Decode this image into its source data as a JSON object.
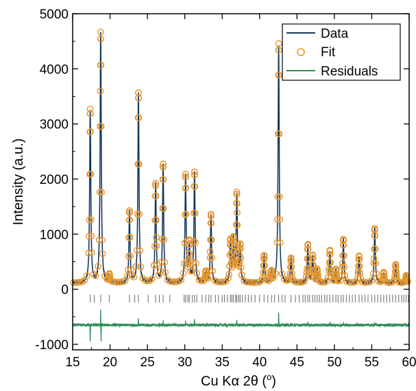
{
  "chart_data": {
    "type": "line",
    "xlabel": "Cu Kα 2θ (°)",
    "xlabel_main": "Cu Kα 2θ (",
    "xlabel_unit": "o",
    "xlabel_close": ")",
    "ylabel": "Intensity (a.u.)",
    "xlim": [
      15,
      60
    ],
    "ylim": [
      -1100,
      5000
    ],
    "x_ticks": [
      15,
      20,
      25,
      30,
      35,
      40,
      45,
      50,
      55,
      60
    ],
    "y_ticks": [
      -1000,
      0,
      1000,
      2000,
      3000,
      4000,
      5000
    ],
    "grid": false,
    "legend_position": "top-right",
    "colors": {
      "data": "#13365f",
      "fit": "#e6962d",
      "residuals": "#2e8b57",
      "bragg_ticks": "#7f7f7f"
    },
    "background_level": 110,
    "peaks": [
      {
        "x": 17.35,
        "y": 3250
      },
      {
        "x": 18.75,
        "y": 4650
      },
      {
        "x": 19.9,
        "y": 250
      },
      {
        "x": 22.6,
        "y": 1400
      },
      {
        "x": 23.8,
        "y": 3550
      },
      {
        "x": 26.1,
        "y": 1900
      },
      {
        "x": 27.1,
        "y": 2250
      },
      {
        "x": 30.1,
        "y": 2050
      },
      {
        "x": 30.6,
        "y": 800
      },
      {
        "x": 31.3,
        "y": 2100
      },
      {
        "x": 32.8,
        "y": 300
      },
      {
        "x": 33.5,
        "y": 1350
      },
      {
        "x": 36.1,
        "y": 850
      },
      {
        "x": 36.5,
        "y": 850
      },
      {
        "x": 36.95,
        "y": 1700
      },
      {
        "x": 37.4,
        "y": 750
      },
      {
        "x": 40.6,
        "y": 600
      },
      {
        "x": 41.6,
        "y": 300
      },
      {
        "x": 42.55,
        "y": 4450
      },
      {
        "x": 44.2,
        "y": 550
      },
      {
        "x": 46.45,
        "y": 800
      },
      {
        "x": 47.1,
        "y": 600
      },
      {
        "x": 47.7,
        "y": 350
      },
      {
        "x": 49.4,
        "y": 700
      },
      {
        "x": 50.2,
        "y": 350
      },
      {
        "x": 51.2,
        "y": 900
      },
      {
        "x": 53.3,
        "y": 600
      },
      {
        "x": 55.4,
        "y": 1100
      },
      {
        "x": 56.6,
        "y": 300
      },
      {
        "x": 58.2,
        "y": 450
      },
      {
        "x": 59.6,
        "y": 250
      }
    ],
    "residual_offset": -650,
    "residual_spikes": [
      {
        "x": 17.35,
        "y": -1000
      },
      {
        "x": 18.75,
        "y": -300
      },
      {
        "x": 18.8,
        "y": -1000
      },
      {
        "x": 23.8,
        "y": -500
      },
      {
        "x": 27.1,
        "y": -550
      },
      {
        "x": 30.1,
        "y": -560
      },
      {
        "x": 31.3,
        "y": -520
      },
      {
        "x": 36.95,
        "y": -540
      },
      {
        "x": 42.55,
        "y": -380
      },
      {
        "x": 46.45,
        "y": -580
      },
      {
        "x": 49.4,
        "y": -580
      },
      {
        "x": 51.2,
        "y": -590
      },
      {
        "x": 55.4,
        "y": -590
      }
    ],
    "bragg_tick_positions": [
      17.35,
      17.9,
      18.75,
      19.9,
      22.6,
      23.3,
      23.8,
      25.1,
      26.1,
      26.6,
      27.1,
      28.0,
      29.9,
      30.1,
      30.4,
      30.6,
      31.0,
      31.3,
      31.6,
      32.3,
      32.8,
      33.2,
      33.5,
      34.1,
      34.5,
      35.0,
      35.3,
      35.7,
      36.1,
      36.3,
      36.5,
      36.8,
      36.95,
      37.2,
      37.4,
      37.7,
      38.1,
      38.5,
      38.9,
      39.4,
      40.0,
      40.6,
      41.1,
      41.6,
      42.0,
      42.55,
      43.0,
      43.4,
      44.2,
      44.8,
      45.3,
      45.8,
      46.1,
      46.45,
      46.7,
      47.1,
      47.4,
      47.7,
      48.0,
      48.3,
      48.7,
      49.0,
      49.4,
      49.8,
      50.2,
      50.5,
      50.9,
      51.2,
      51.6,
      52.0,
      52.4,
      52.8,
      53.3,
      53.7,
      54.1,
      54.5,
      55.0,
      55.4,
      55.8,
      56.2,
      56.6,
      57.0,
      57.4,
      57.8,
      58.2,
      58.6,
      59.0,
      59.3,
      59.6,
      59.9
    ],
    "series": [
      {
        "name": "Data"
      },
      {
        "name": "Fit"
      },
      {
        "name": "Residuals"
      }
    ]
  }
}
